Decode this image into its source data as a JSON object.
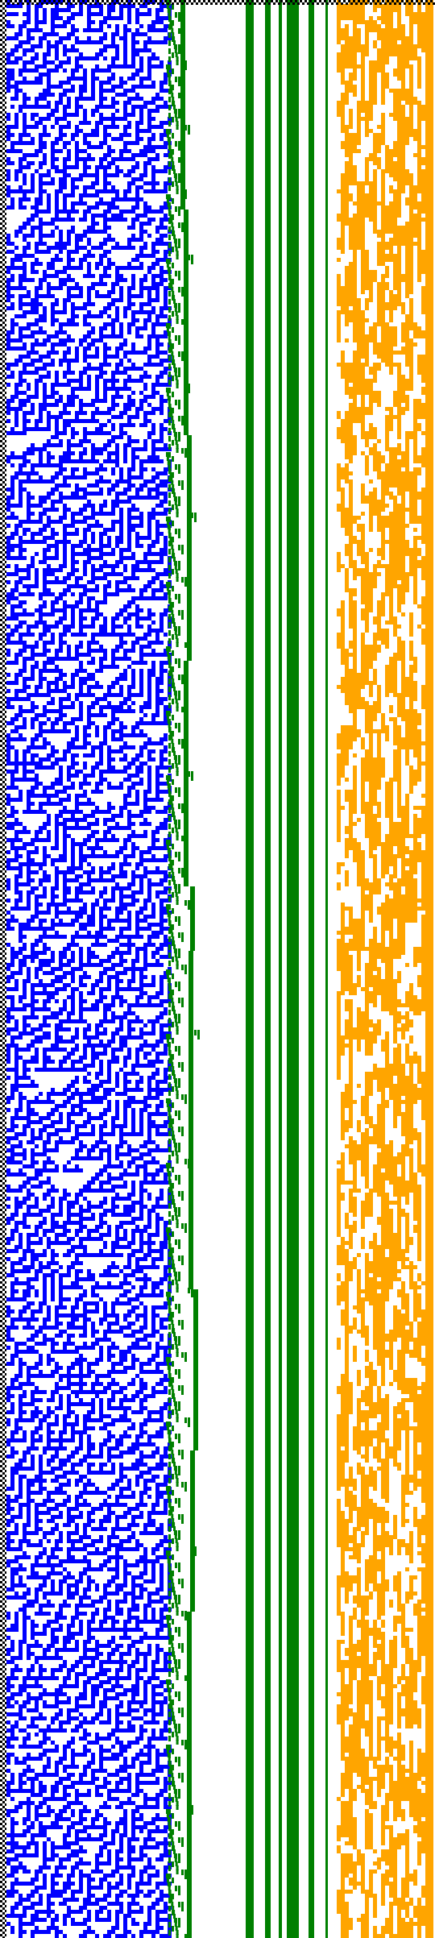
{
  "visualization": {
    "kind": "cellular-automaton-columns",
    "background": "#ffffff",
    "panels": [
      {
        "name": "dotted-border-column",
        "color": "#000000",
        "pattern": "checker"
      },
      {
        "name": "blue-noise-panel",
        "color": "#0000ff",
        "pattern": "random-cells",
        "density": 0.55
      },
      {
        "name": "green-staircase-panel",
        "color": "#008000",
        "pattern": "nested-staircase"
      },
      {
        "name": "green-vertical-bars",
        "color": "#008000",
        "pattern": "solid-bars"
      },
      {
        "name": "orange-noise-panel",
        "color": "#ffa500",
        "pattern": "random-cells",
        "density": 0.6
      }
    ]
  }
}
